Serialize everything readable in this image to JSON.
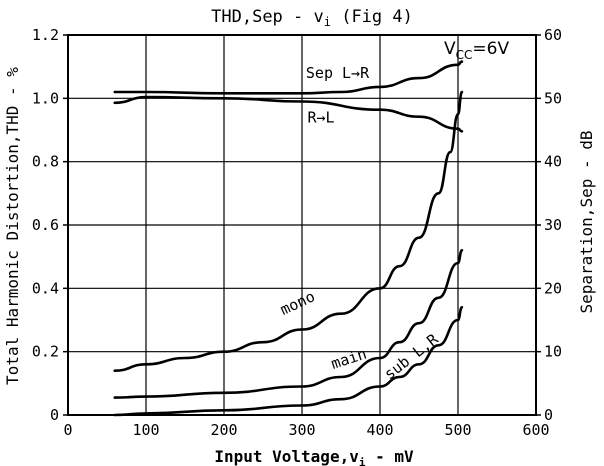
{
  "chart_data": {
    "type": "line",
    "title": "THD,Sep - v",
    "title_sub": "i",
    "title_tail": " (Fig 4)",
    "xlabel": "Input Voltage,v",
    "xlabel_sub": "i",
    "xlabel_tail": " - mV",
    "ylabel": "Total Harmonic Distortion,THD - %",
    "y2label": "Separation,Sep - dB",
    "xlim": [
      0,
      600
    ],
    "ylim": [
      0,
      1.2
    ],
    "y2lim": [
      0,
      60
    ],
    "xticks": [
      "0",
      "100",
      "200",
      "300",
      "400",
      "500",
      "600"
    ],
    "yticks": [
      "0",
      "0.2",
      "0.4",
      "0.6",
      "0.8",
      "1.0",
      "1.2"
    ],
    "y2ticks": [
      "0",
      "10",
      "20",
      "30",
      "40",
      "50",
      "60"
    ],
    "grid": true,
    "annotation_vcc": "V",
    "annotation_vcc_sub": "CC",
    "annotation_vcc_tail": "=6V",
    "series": [
      {
        "name": "Sep L→R",
        "axis": "right",
        "x": [
          60,
          100,
          200,
          300,
          350,
          400,
          450,
          500,
          505
        ],
        "y": [
          51,
          51,
          50.8,
          50.8,
          51,
          51.8,
          53.2,
          55.3,
          55.8
        ]
      },
      {
        "name": "R→L",
        "axis": "right",
        "x": [
          60,
          100,
          200,
          300,
          400,
          450,
          500,
          505
        ],
        "y": [
          49.3,
          50.2,
          50,
          49.5,
          48.2,
          47.1,
          45.2,
          44.8
        ]
      },
      {
        "name": "mono",
        "axis": "left",
        "x": [
          60,
          100,
          150,
          200,
          250,
          300,
          350,
          400,
          425,
          450,
          475,
          490,
          500,
          505
        ],
        "y": [
          0.14,
          0.16,
          0.18,
          0.2,
          0.23,
          0.27,
          0.32,
          0.4,
          0.47,
          0.56,
          0.7,
          0.83,
          0.95,
          1.02
        ]
      },
      {
        "name": "main",
        "axis": "left",
        "x": [
          60,
          100,
          200,
          300,
          350,
          400,
          425,
          450,
          475,
          500,
          505
        ],
        "y": [
          0.055,
          0.058,
          0.07,
          0.09,
          0.12,
          0.18,
          0.23,
          0.29,
          0.37,
          0.48,
          0.52
        ]
      },
      {
        "name": "sub L,R",
        "axis": "left",
        "x": [
          60,
          100,
          200,
          300,
          350,
          400,
          425,
          450,
          475,
          500,
          505
        ],
        "y": [
          0.0,
          0.005,
          0.015,
          0.03,
          0.05,
          0.09,
          0.12,
          0.16,
          0.22,
          0.3,
          0.34
        ]
      }
    ]
  }
}
